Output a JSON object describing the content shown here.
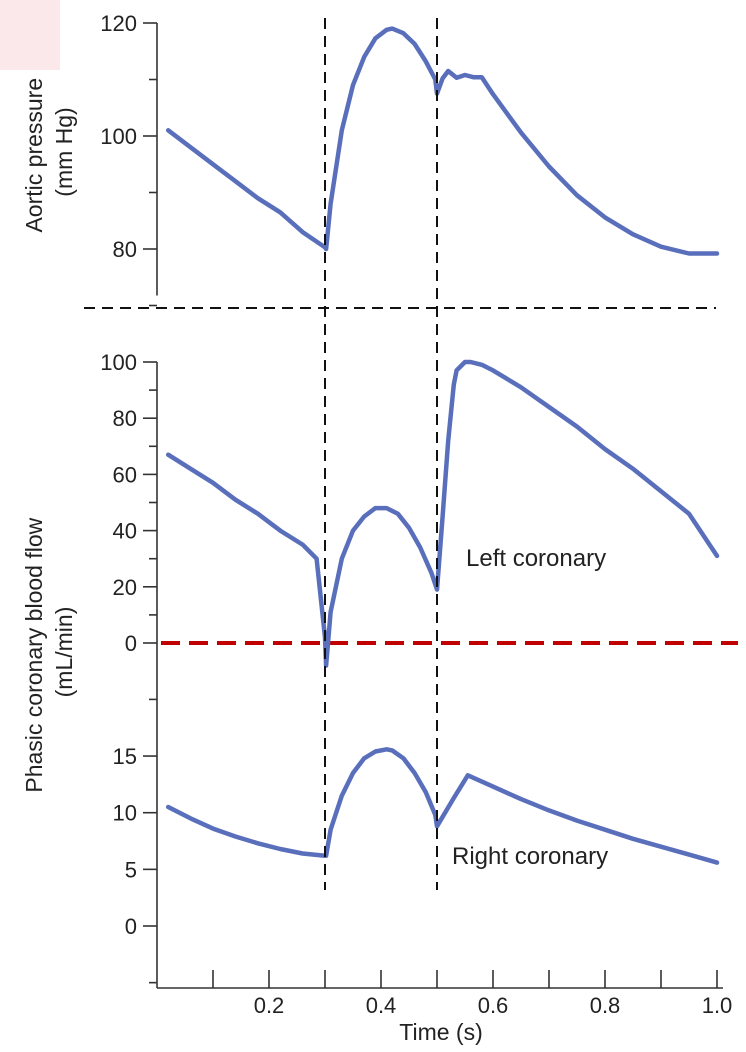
{
  "colors": {
    "curve": "#5a6fbb",
    "zero_line": "#c00000",
    "guide": "#111111",
    "axis": "#333333",
    "text": "#222222",
    "corner_tint": "#fbe8ea"
  },
  "chart_data": {
    "type": "line",
    "x_axis": {
      "label": "Time (s)",
      "ticks": [
        0.1,
        0.2,
        0.3,
        0.4,
        0.5,
        0.6,
        0.7,
        0.8,
        0.9,
        1.0
      ],
      "tick_labels": [
        "0.2",
        "0.4",
        "0.6",
        "0.8",
        "1.0"
      ],
      "labeled_ticks": [
        0.2,
        0.4,
        0.6,
        0.8,
        1.0
      ],
      "range": [
        0.0,
        1.0
      ]
    },
    "markers": [
      0.3,
      0.5
    ],
    "panels": [
      {
        "id": "aortic",
        "ylabel_lines": [
          "Aortic pressure",
          "(mm Hg)"
        ],
        "ylim": [
          70,
          120
        ],
        "yticks": [
          70,
          80,
          90,
          100,
          110,
          120
        ],
        "ytick_labels": [
          "80",
          "100",
          "120"
        ],
        "labeled_ticks": [
          80,
          100,
          120
        ],
        "series": [
          {
            "x": [
              0.02,
              0.06,
              0.1,
              0.14,
              0.18,
              0.22,
              0.26,
              0.3,
              0.302,
              0.31,
              0.33,
              0.35,
              0.37,
              0.39,
              0.41,
              0.42,
              0.44,
              0.46,
              0.48,
              0.497,
              0.5,
              0.51,
              0.52,
              0.535,
              0.55,
              0.565,
              0.58,
              0.6,
              0.65,
              0.7,
              0.75,
              0.8,
              0.85,
              0.9,
              0.95,
              1.0
            ],
            "y": [
              101,
              98,
              95,
              92,
              89,
              86.5,
              83,
              80.3,
              80,
              88,
              101,
              109,
              114,
              117.3,
              118.8,
              119,
              118.2,
              116.3,
              113.2,
              110,
              107.5,
              110.2,
              111.5,
              110.3,
              110.8,
              110.4,
              110.4,
              107.4,
              100.6,
              94.6,
              89.5,
              85.6,
              82.6,
              80.4,
              79.2,
              79.2
            ]
          }
        ]
      },
      {
        "id": "coronary",
        "ylabel_lines": [
          "Phasic coronary blood flow",
          "(mL/min)"
        ],
        "ylim": [
          -2,
          100
        ],
        "ref_line": 0,
        "ref_line_style": "red-dashed",
        "left_ticks": [
          100,
          90,
          80,
          70,
          60,
          50,
          40,
          30,
          20,
          10,
          0
        ],
        "left_tick_labels": [
          "100",
          "80",
          "60",
          "40",
          "20",
          "0"
        ],
        "left_labeled_ticks": [
          100,
          80,
          60,
          40,
          20,
          0
        ],
        "right_ticks": [
          20,
          15,
          10,
          5,
          0,
          -5
        ],
        "right_tick_labels": [
          "15",
          "10",
          "5",
          "0"
        ],
        "right_labeled_ticks": [
          15,
          10,
          5,
          0
        ],
        "series": [
          {
            "name": "Left coronary",
            "x": [
              0.02,
              0.06,
              0.1,
              0.14,
              0.18,
              0.22,
              0.26,
              0.285,
              0.3,
              0.302,
              0.31,
              0.33,
              0.35,
              0.37,
              0.39,
              0.41,
              0.43,
              0.45,
              0.47,
              0.49,
              0.5,
              0.51,
              0.52,
              0.53,
              0.535,
              0.55,
              0.56,
              0.58,
              0.6,
              0.65,
              0.7,
              0.75,
              0.8,
              0.85,
              0.9,
              0.95,
              1.0
            ],
            "y": [
              67,
              62,
              57,
              51,
              46,
              40,
              35,
              30,
              2,
              -8,
              11,
              30,
              40,
              45,
              48,
              48,
              46,
              41,
              34,
              25,
              19,
              45,
              72,
              92,
              97,
              100,
              100,
              99,
              97,
              91,
              84,
              77,
              69,
              62,
              54,
              46,
              31
            ]
          },
          {
            "name": "Right coronary",
            "x": [
              0.02,
              0.06,
              0.1,
              0.14,
              0.18,
              0.22,
              0.26,
              0.3,
              0.302,
              0.31,
              0.33,
              0.35,
              0.37,
              0.39,
              0.41,
              0.42,
              0.44,
              0.46,
              0.48,
              0.497,
              0.5,
              0.53,
              0.555,
              0.6,
              0.65,
              0.7,
              0.75,
              0.8,
              0.85,
              0.9,
              0.95,
              1.0
            ],
            "y": [
              10.5,
              9.5,
              8.6,
              7.9,
              7.3,
              6.8,
              6.4,
              6.2,
              6.2,
              8.5,
              11.5,
              13.5,
              14.8,
              15.4,
              15.6,
              15.5,
              14.8,
              13.5,
              11.8,
              9.8,
              8.8,
              11.3,
              13.3,
              12.3,
              11.2,
              10.2,
              9.3,
              8.5,
              7.7,
              7.0,
              6.3,
              5.6
            ]
          }
        ]
      }
    ]
  }
}
